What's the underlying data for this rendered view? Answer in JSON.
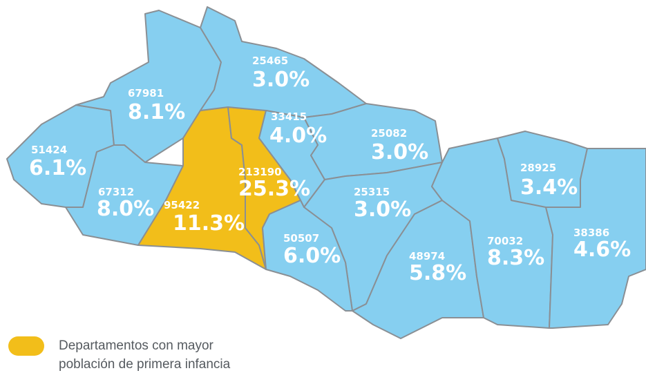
{
  "colors": {
    "default": "#86cff0",
    "highlight": "#f2be1a"
  },
  "regions": [
    {
      "count": 51424,
      "percent": "6.1%",
      "highlighted": false
    },
    {
      "count": 67981,
      "percent": "8.1%",
      "highlighted": false
    },
    {
      "count": 67312,
      "percent": "8.0%",
      "highlighted": false
    },
    {
      "count": 95422,
      "percent": "11.3%",
      "highlighted": true
    },
    {
      "count": 213190,
      "percent": "25.3%",
      "highlighted": true
    },
    {
      "count": 25465,
      "percent": "3.0%",
      "highlighted": false
    },
    {
      "count": 33415,
      "percent": "4.0%",
      "highlighted": false
    },
    {
      "count": 25082,
      "percent": "3.0%",
      "highlighted": false
    },
    {
      "count": 25315,
      "percent": "3.0%",
      "highlighted": false
    },
    {
      "count": 50507,
      "percent": "6.0%",
      "highlighted": false
    },
    {
      "count": 48974,
      "percent": "5.8%",
      "highlighted": false
    },
    {
      "count": 70032,
      "percent": "8.3%",
      "highlighted": false
    },
    {
      "count": 28925,
      "percent": "3.4%",
      "highlighted": false
    },
    {
      "count": 38386,
      "percent": "4.6%",
      "highlighted": false
    }
  ],
  "legend": {
    "lines": [
      "Departamentos con mayor",
      "población de primera infancia"
    ]
  }
}
